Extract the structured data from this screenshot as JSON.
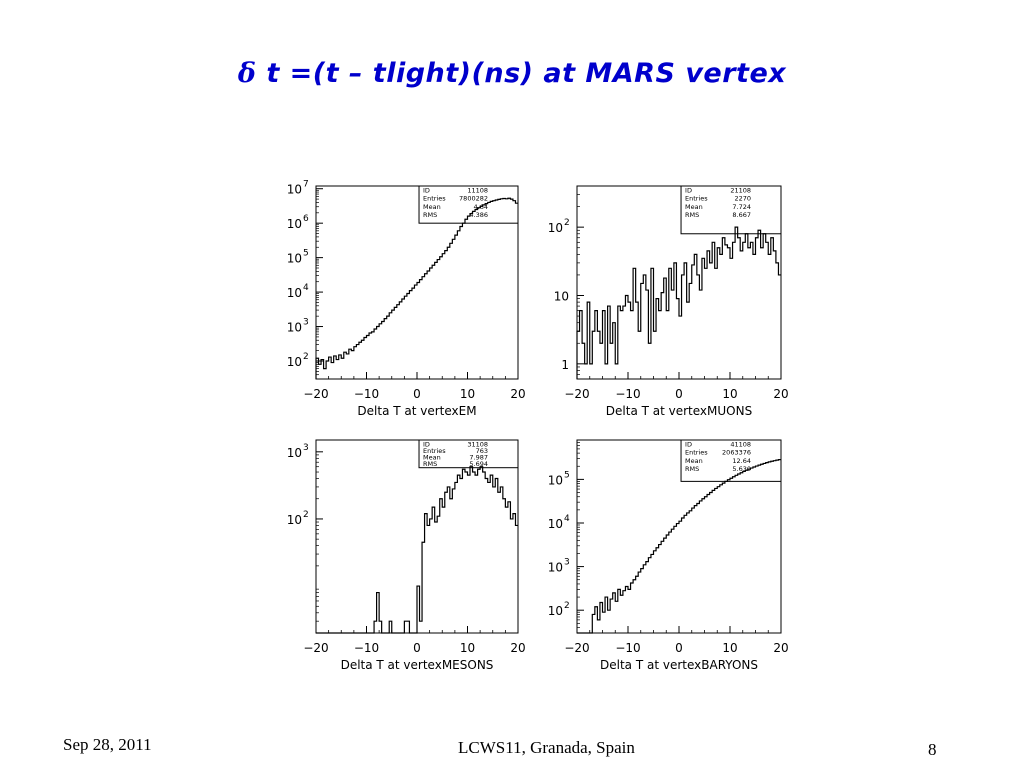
{
  "slide": {
    "title_symbol": "δ",
    "title_text": "t =(t – tlight)(ns) at MARS vertex",
    "footer_date": "Sep 28, 2011",
    "footer_venue": "LCWS11, Granada, Spain",
    "page_number": "8"
  },
  "colors": {
    "title": "#0000cc",
    "line": "#000000"
  },
  "chart_data": [
    {
      "type": "histogram",
      "xlabel": "Delta T at vertexEM",
      "xlim": [
        -20,
        20
      ],
      "xticks": [
        -20,
        -10,
        0,
        10,
        20
      ],
      "yscale": "log",
      "ylim": [
        30,
        12000000
      ],
      "yticks": [
        {
          "value": 100,
          "label": "10",
          "exp": "2"
        },
        {
          "value": 1000,
          "label": "10",
          "exp": "3"
        },
        {
          "value": 10000,
          "label": "10",
          "exp": "4"
        },
        {
          "value": 100000,
          "label": "10",
          "exp": "5"
        },
        {
          "value": 1000000,
          "label": "10",
          "exp": "6"
        },
        {
          "value": 10000000,
          "label": "10",
          "exp": "7"
        }
      ],
      "stats": [
        {
          "name": "ID",
          "value": "11108"
        },
        {
          "name": "Entries",
          "value": "7800282"
        },
        {
          "name": "Mean",
          "value": "4.64"
        },
        {
          "name": "RMS",
          "value": "4.386"
        }
      ],
      "stats_bottom": 1000000,
      "bins": {
        "start": -20,
        "width": 0.5
      },
      "values": [
        120,
        80,
        110,
        60,
        100,
        130,
        90,
        140,
        110,
        150,
        120,
        180,
        160,
        220,
        200,
        260,
        300,
        350,
        400,
        480,
        550,
        650,
        700,
        850,
        1000,
        1200,
        1400,
        1700,
        2000,
        2500,
        3000,
        3600,
        4300,
        5200,
        6300,
        7600,
        9100,
        11000,
        13000,
        16000,
        19000,
        23000,
        28000,
        34000,
        41000,
        50000,
        60000,
        73000,
        88000,
        106000,
        130000,
        160000,
        200000,
        260000,
        340000,
        450000,
        600000,
        800000,
        1000000,
        1300000,
        1600000,
        1900000,
        2200000,
        2500000,
        2800000,
        3100000,
        3400000,
        3700000,
        4000000,
        4300000,
        4500000,
        4700000,
        4900000,
        5100000,
        5200000,
        5100000,
        5300000,
        5000000,
        4500000,
        3800000
      ]
    },
    {
      "type": "histogram",
      "xlabel": "Delta T at vertexMUONS",
      "xlim": [
        -20,
        20
      ],
      "xticks": [
        -20,
        -10,
        0,
        10,
        20
      ],
      "yscale": "log",
      "ylim": [
        0.6,
        400
      ],
      "yticks": [
        {
          "value": 1,
          "label": "1",
          "exp": ""
        },
        {
          "value": 10,
          "label": "10",
          "exp": ""
        },
        {
          "value": 100,
          "label": "10",
          "exp": "2"
        }
      ],
      "stats": [
        {
          "name": "ID",
          "value": "21108"
        },
        {
          "name": "Entries",
          "value": "2270"
        },
        {
          "name": "Mean",
          "value": "7.724"
        },
        {
          "name": "RMS",
          "value": "8.667"
        }
      ],
      "stats_bottom": 80,
      "bins": {
        "start": -20,
        "width": 0.5
      },
      "values": [
        3,
        6,
        2,
        1,
        8,
        1,
        3,
        6,
        3,
        2,
        6,
        1,
        7,
        2,
        4,
        1,
        7,
        6,
        7,
        10,
        8,
        6,
        25,
        8,
        3,
        15,
        20,
        12,
        2,
        25,
        3,
        9,
        6,
        11,
        18,
        6,
        25,
        12,
        30,
        9,
        5,
        20,
        30,
        8,
        15,
        28,
        40,
        20,
        12,
        35,
        25,
        45,
        30,
        60,
        25,
        50,
        40,
        70,
        55,
        50,
        35,
        60,
        100,
        70,
        45,
        60,
        80,
        50,
        60,
        40,
        70,
        90,
        50,
        80,
        60,
        40,
        70,
        45,
        30,
        20
      ]
    },
    {
      "type": "histogram",
      "xlabel": "Delta T at vertexMESONS",
      "xlim": [
        -20,
        20
      ],
      "xticks": [
        -20,
        -10,
        0,
        10,
        20
      ],
      "yscale": "log",
      "ylim": [
        2,
        1500
      ],
      "yticks": [
        {
          "value": 100,
          "label": "10",
          "exp": "2"
        },
        {
          "value": 1000,
          "label": "10",
          "exp": "3"
        }
      ],
      "stats": [
        {
          "name": "ID",
          "value": "31108"
        },
        {
          "name": "Entries",
          "value": "763"
        },
        {
          "name": "Mean",
          "value": "7.987"
        },
        {
          "name": "RMS",
          "value": "5.694"
        }
      ],
      "stats_bottom": 580,
      "bins": {
        "start": -20,
        "width": 0.5
      },
      "values": [
        0,
        0,
        0,
        0,
        0,
        0,
        0,
        0,
        0,
        0,
        0,
        0,
        0,
        0,
        0,
        0,
        0,
        0,
        0,
        0,
        0,
        0,
        0,
        3,
        8,
        3,
        0,
        0,
        2,
        3,
        0,
        0,
        0,
        2,
        0,
        3,
        3,
        0,
        0,
        0,
        10,
        3,
        45,
        120,
        80,
        100,
        150,
        90,
        110,
        200,
        150,
        250,
        300,
        200,
        280,
        350,
        450,
        400,
        550,
        500,
        450,
        600,
        500,
        450,
        550,
        600,
        500,
        400,
        350,
        450,
        300,
        400,
        250,
        300,
        200,
        150,
        180,
        100,
        120,
        80
      ]
    },
    {
      "type": "histogram",
      "xlabel": "Delta T at vertexBARYONS",
      "xlim": [
        -20,
        20
      ],
      "xticks": [
        -20,
        -10,
        0,
        10,
        20
      ],
      "yscale": "log",
      "ylim": [
        30,
        800000
      ],
      "yticks": [
        {
          "value": 100,
          "label": "10",
          "exp": "2"
        },
        {
          "value": 1000,
          "label": "10",
          "exp": "3"
        },
        {
          "value": 10000,
          "label": "10",
          "exp": "4"
        },
        {
          "value": 100000,
          "label": "10",
          "exp": "5"
        }
      ],
      "stats": [
        {
          "name": "ID",
          "value": "41108"
        },
        {
          "name": "Entries",
          "value": "2063376"
        },
        {
          "name": "Mean",
          "value": "12.64"
        },
        {
          "name": "RMS",
          "value": "5.630"
        }
      ],
      "stats_bottom": 90000,
      "bins": {
        "start": -20,
        "width": 0.5
      },
      "values": [
        0,
        0,
        0,
        0,
        0,
        0,
        80,
        120,
        60,
        150,
        90,
        200,
        100,
        180,
        250,
        160,
        300,
        220,
        280,
        350,
        300,
        420,
        500,
        600,
        750,
        900,
        1100,
        1300,
        1600,
        1900,
        2300,
        2700,
        3200,
        3800,
        4500,
        5300,
        6200,
        7200,
        8400,
        9700,
        11000,
        13000,
        15000,
        17000,
        19000,
        22000,
        25000,
        28000,
        32000,
        36000,
        40000,
        45000,
        50000,
        56000,
        62000,
        68000,
        75000,
        82000,
        90000,
        98000,
        106000,
        115000,
        124000,
        133000,
        142000,
        152000,
        162000,
        172000,
        182000,
        192000,
        202000,
        212000,
        222000,
        232000,
        242000,
        252000,
        260000,
        268000,
        276000,
        284000
      ]
    }
  ]
}
